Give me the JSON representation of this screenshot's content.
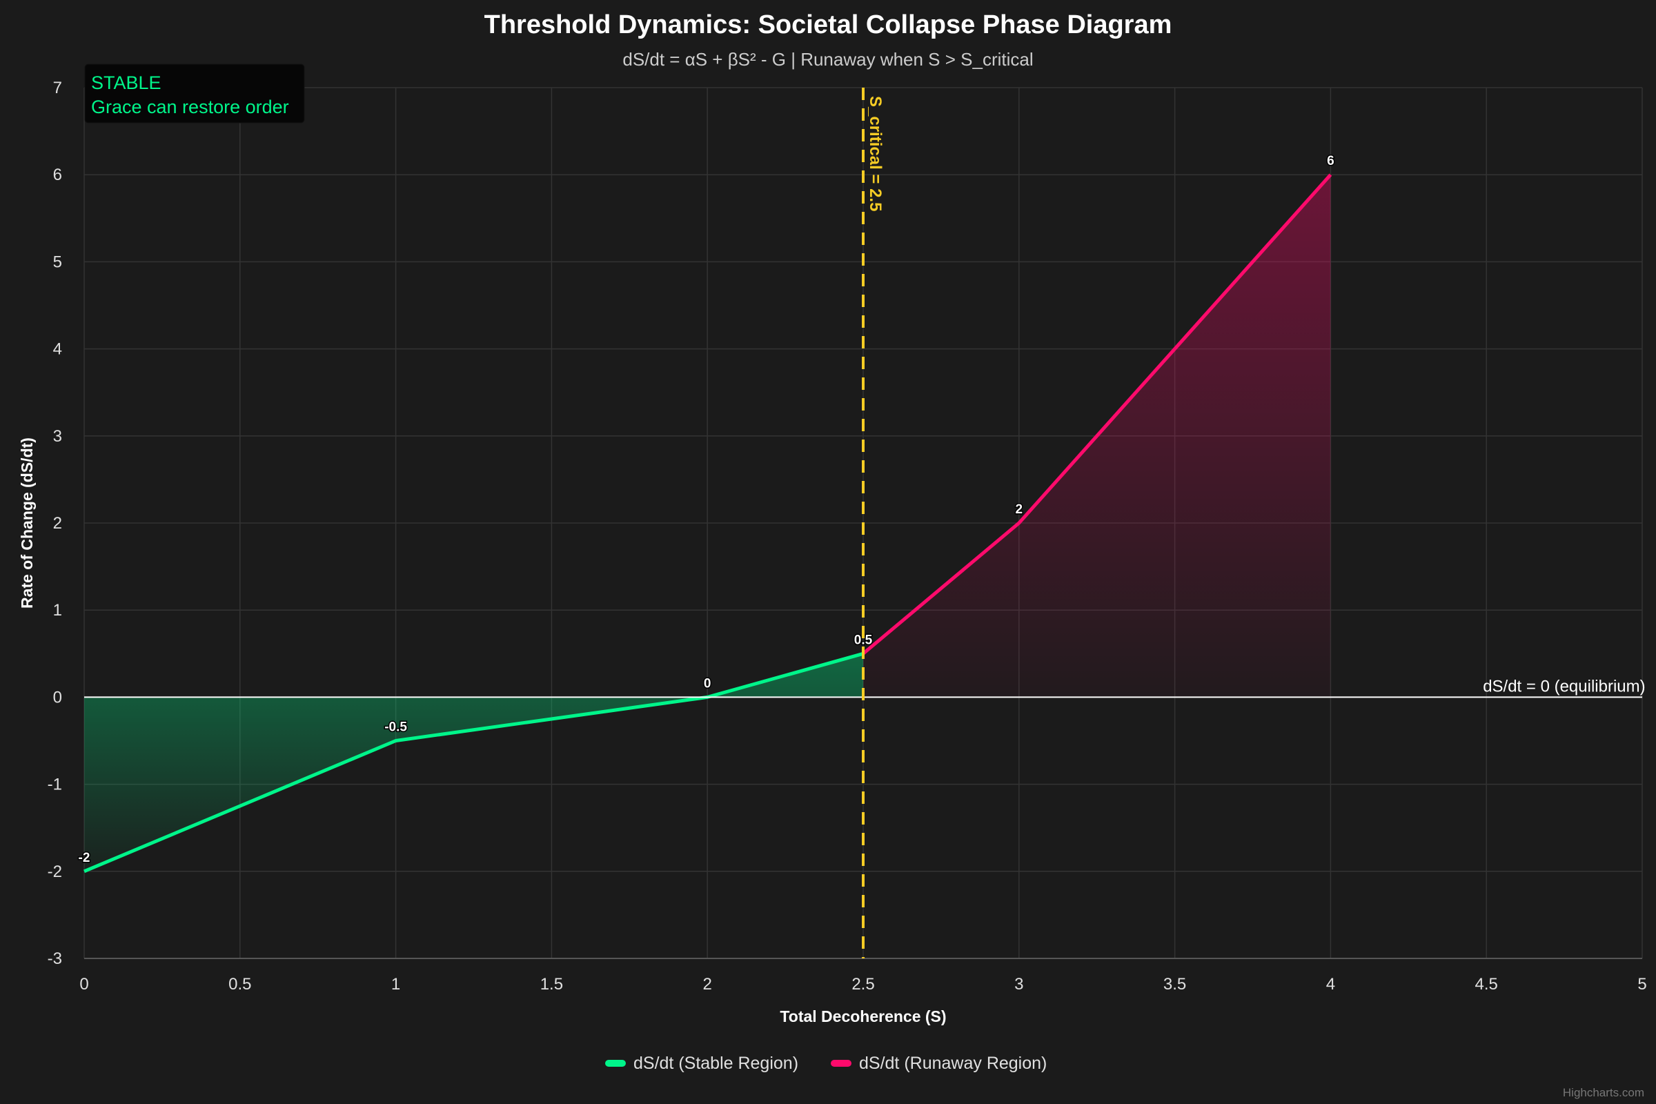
{
  "chart_data": {
    "type": "area",
    "title": "Threshold Dynamics: Societal Collapse Phase Diagram",
    "subtitle": "dS/dt = αS + βS² - G | Runaway when S > S_critical",
    "xlabel": "Total Decoherence (S)",
    "ylabel": "Rate of Change (dS/dt)",
    "xlim": [
      0,
      5
    ],
    "ylim": [
      -3,
      7
    ],
    "x_ticks": [
      "0",
      "0.5",
      "1",
      "1.5",
      "2",
      "2.5",
      "3",
      "3.5",
      "4",
      "4.5",
      "5"
    ],
    "y_ticks": [
      "-3",
      "-2",
      "-1",
      "0",
      "1",
      "2",
      "3",
      "4",
      "5",
      "6",
      "7"
    ],
    "grid": true,
    "legend_position": "bottom",
    "series": [
      {
        "name": "dS/dt (Stable Region)",
        "color": "#00f58a",
        "points": [
          [
            0,
            -2
          ],
          [
            1,
            -0.5
          ],
          [
            2,
            0
          ],
          [
            2.5,
            0.5
          ]
        ],
        "labels": [
          "-2",
          "-0.5",
          "0",
          "0.5"
        ]
      },
      {
        "name": "dS/dt (Runaway Region)",
        "color": "#ff0a6c",
        "points": [
          [
            2.5,
            0.5
          ],
          [
            3,
            2
          ],
          [
            4,
            6
          ]
        ],
        "labels": [
          "",
          "2",
          "6"
        ]
      }
    ],
    "plot_lines": [
      {
        "axis": "x",
        "value": 2.5,
        "label": "S_critical = 2.5",
        "color": "#f5cc25",
        "style": "dashed"
      },
      {
        "axis": "y",
        "value": 0,
        "label": "dS/dt = 0 (equilibrium)",
        "color": "#ffffff",
        "style": "solid"
      }
    ],
    "annotation": {
      "line1": "STABLE",
      "line2": "Grace can restore order",
      "color": "#00f58a"
    },
    "credits": "Highcharts.com"
  }
}
